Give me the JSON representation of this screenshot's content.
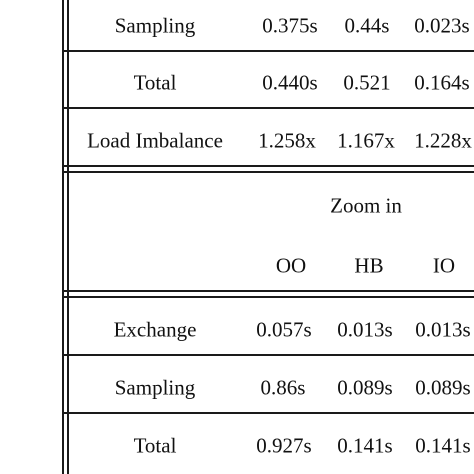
{
  "top_block": {
    "rows": [
      {
        "label": "Sampling",
        "values": [
          "0.375s",
          "0.44s",
          "0.023s"
        ]
      },
      {
        "label": "Total",
        "values": [
          "0.440s",
          "0.521",
          "0.164s"
        ]
      },
      {
        "label": "Load Imbalance",
        "values": [
          "1.258x",
          "1.167x",
          "1.228x"
        ]
      }
    ]
  },
  "zoom_block": {
    "title": "Zoom in",
    "columns": [
      "OO",
      "HB",
      "IO"
    ],
    "rows": [
      {
        "label": "Exchange",
        "values": [
          "0.057s",
          "0.013s",
          "0.013s"
        ]
      },
      {
        "label": "Sampling",
        "values": [
          "0.86s",
          "0.089s",
          "0.089s"
        ]
      },
      {
        "label": "Total",
        "values": [
          "0.927s",
          "0.141s",
          "0.141s"
        ]
      }
    ]
  }
}
